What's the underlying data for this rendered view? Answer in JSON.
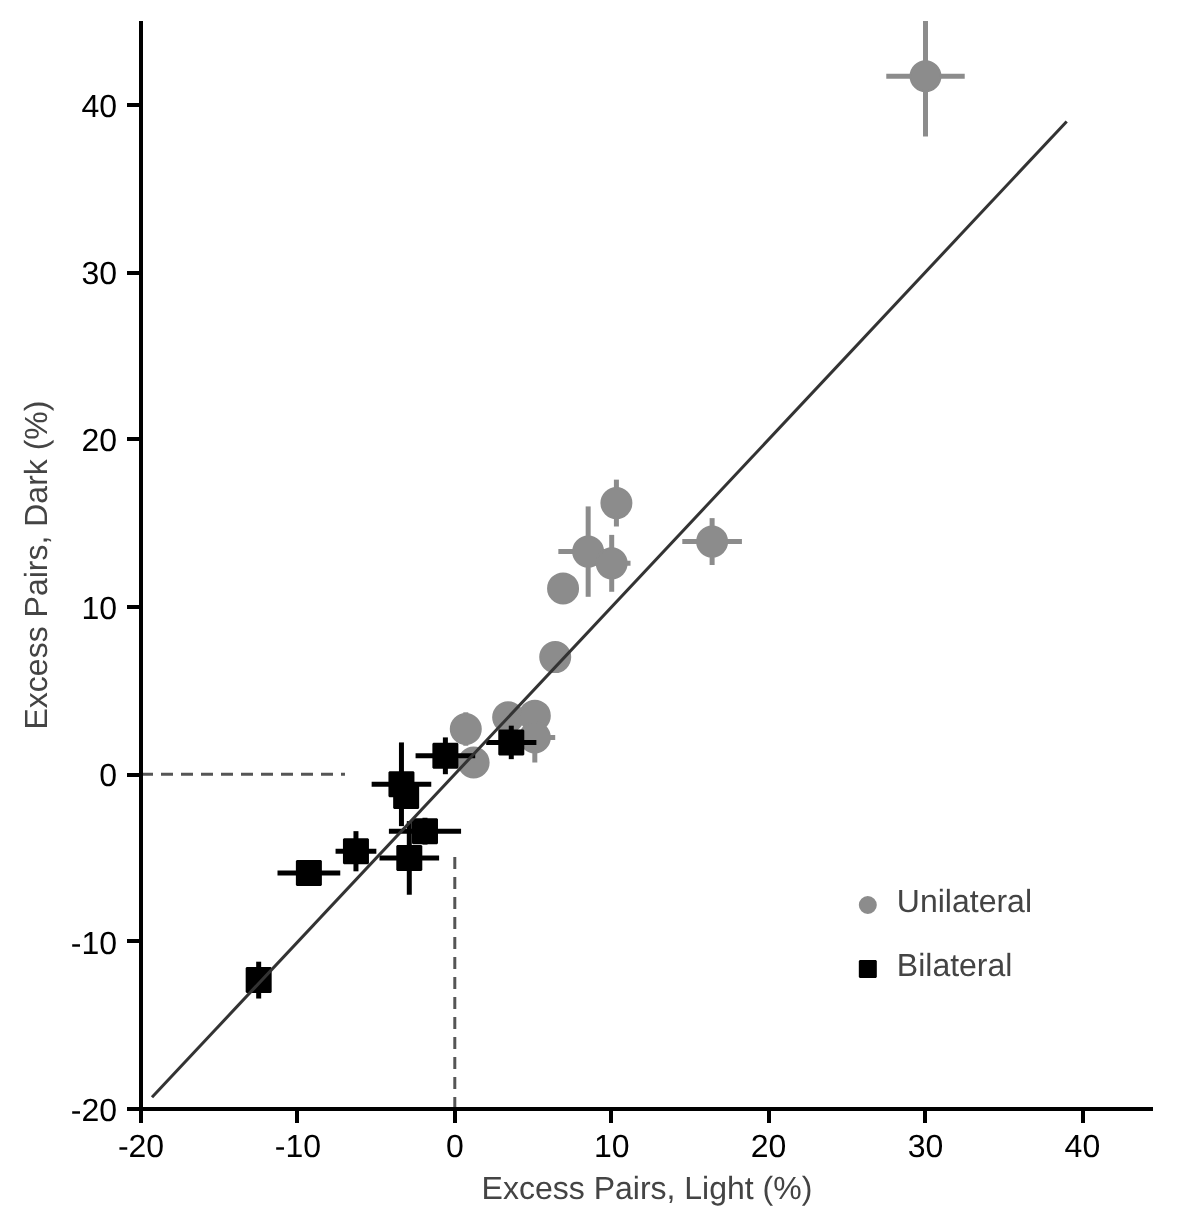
{
  "chart_data": {
    "type": "scatter",
    "xlabel": "Excess Pairs, Light (%)",
    "ylabel": "Excess Pairs, Dark (%)",
    "xlim": [
      -20,
      44.5
    ],
    "ylim": [
      -20,
      45
    ],
    "xticks": [
      {
        "value": -20,
        "label": "-20"
      },
      {
        "value": -10,
        "label": "-10"
      },
      0,
      10,
      20,
      30,
      40
    ],
    "yticks": [
      {
        "value": -20,
        "label": "-20"
      },
      {
        "value": -10,
        "label": "-10"
      },
      0,
      10,
      20,
      30,
      40
    ],
    "grid": false,
    "legend": "bottom right",
    "series": [
      {
        "name": "Unilateral",
        "color": "#8c8c8c",
        "marker": "circle",
        "x": [
          0.7,
          1.2,
          3.4,
          5.1,
          5.1,
          6.4,
          6.9,
          8.5,
          10.0,
          10.3,
          16.4,
          30.0
        ],
        "values": [
          2.7,
          0.7,
          3.4,
          3.5,
          2.2,
          7.0,
          11.1,
          13.3,
          12.6,
          16.2,
          13.9,
          41.7
        ],
        "xerrors": [
          null,
          null,
          null,
          null,
          1.3,
          null,
          null,
          1.9,
          1.2,
          null,
          1.9,
          2.5
        ],
        "errors": [
          1.0,
          null,
          null,
          null,
          1.5,
          null,
          null,
          2.7,
          1.7,
          1.4,
          1.4,
          3.6
        ]
      },
      {
        "name": "Bilateral",
        "color": "#000000",
        "marker": "square",
        "x": [
          -12.5,
          -9.3,
          -6.3,
          -3.4,
          -3.1,
          -1.9,
          -2.9,
          -0.6,
          3.6
        ],
        "values": [
          -12.3,
          -5.9,
          -4.6,
          -0.6,
          -1.3,
          -3.4,
          -5.0,
          1.1,
          1.9
        ],
        "xerrors": [
          0.7,
          2.0,
          1.3,
          1.9,
          null,
          2.3,
          1.9,
          1.9,
          1.6
        ],
        "errors": [
          1.1,
          0.6,
          1.2,
          2.5,
          null,
          0.8,
          2.2,
          1.1,
          1.0
        ]
      },
      {
        "type": "line",
        "color": "#333333",
        "line_style": "solid",
        "x": [
          -19.3,
          39.0
        ],
        "values": [
          -19.3,
          39.0
        ]
      },
      {
        "type": "line",
        "color": "#555555",
        "line_style": "dashed",
        "x": [
          -20,
          -7
        ],
        "values": [
          0,
          0
        ]
      },
      {
        "type": "line",
        "color": "#555555",
        "line_style": "dashed",
        "x": [
          0,
          0
        ],
        "values": [
          -20,
          -4.8
        ]
      }
    ]
  }
}
